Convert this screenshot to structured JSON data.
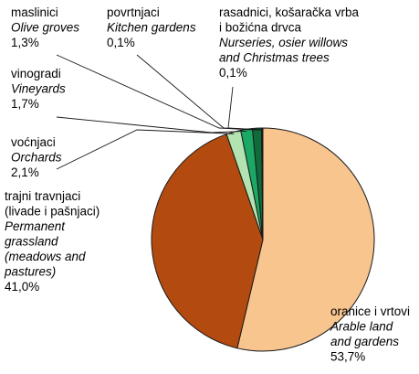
{
  "chart_data": {
    "type": "pie",
    "title": "",
    "unit": "%",
    "slices": [
      {
        "label_hr": "oranice i vrtovi",
        "label_en": [
          "Arable land",
          "and gardens"
        ],
        "value": 53.7,
        "display": "53,7%",
        "color": "#f9c58f"
      },
      {
        "label_hr": [
          "trajni travnjaci",
          "(livade i pašnjaci)"
        ],
        "label_en": [
          "Permanent",
          "grassland",
          "(meadows and",
          "pastures)"
        ],
        "value": 41.0,
        "display": "41,0%",
        "color": "#b34a10"
      },
      {
        "label_hr": "voćnjaci",
        "label_en": [
          "Orchards"
        ],
        "value": 2.1,
        "display": "2,1%",
        "color": "#b3e3b0"
      },
      {
        "label_hr": "vinogradi",
        "label_en": [
          "Vineyards"
        ],
        "value": 1.7,
        "display": "1,7%",
        "color": "#1aa864"
      },
      {
        "label_hr": "maslinici",
        "label_en": [
          "Olive groves"
        ],
        "value": 1.3,
        "display": "1,3%",
        "color": "#0f6b3c"
      },
      {
        "label_hr": "povrtnjaci",
        "label_en": [
          "Kitchen gardens"
        ],
        "value": 0.1,
        "display": "0,1%",
        "color": "#00462a"
      },
      {
        "label_hr": [
          "rasadnici, košaračka vrba",
          "i božićna drvca"
        ],
        "label_en": [
          "Nurseries, osier willows",
          "and Christmas trees"
        ],
        "value": 0.1,
        "display": "0,1%",
        "color": "#002a18"
      }
    ]
  }
}
